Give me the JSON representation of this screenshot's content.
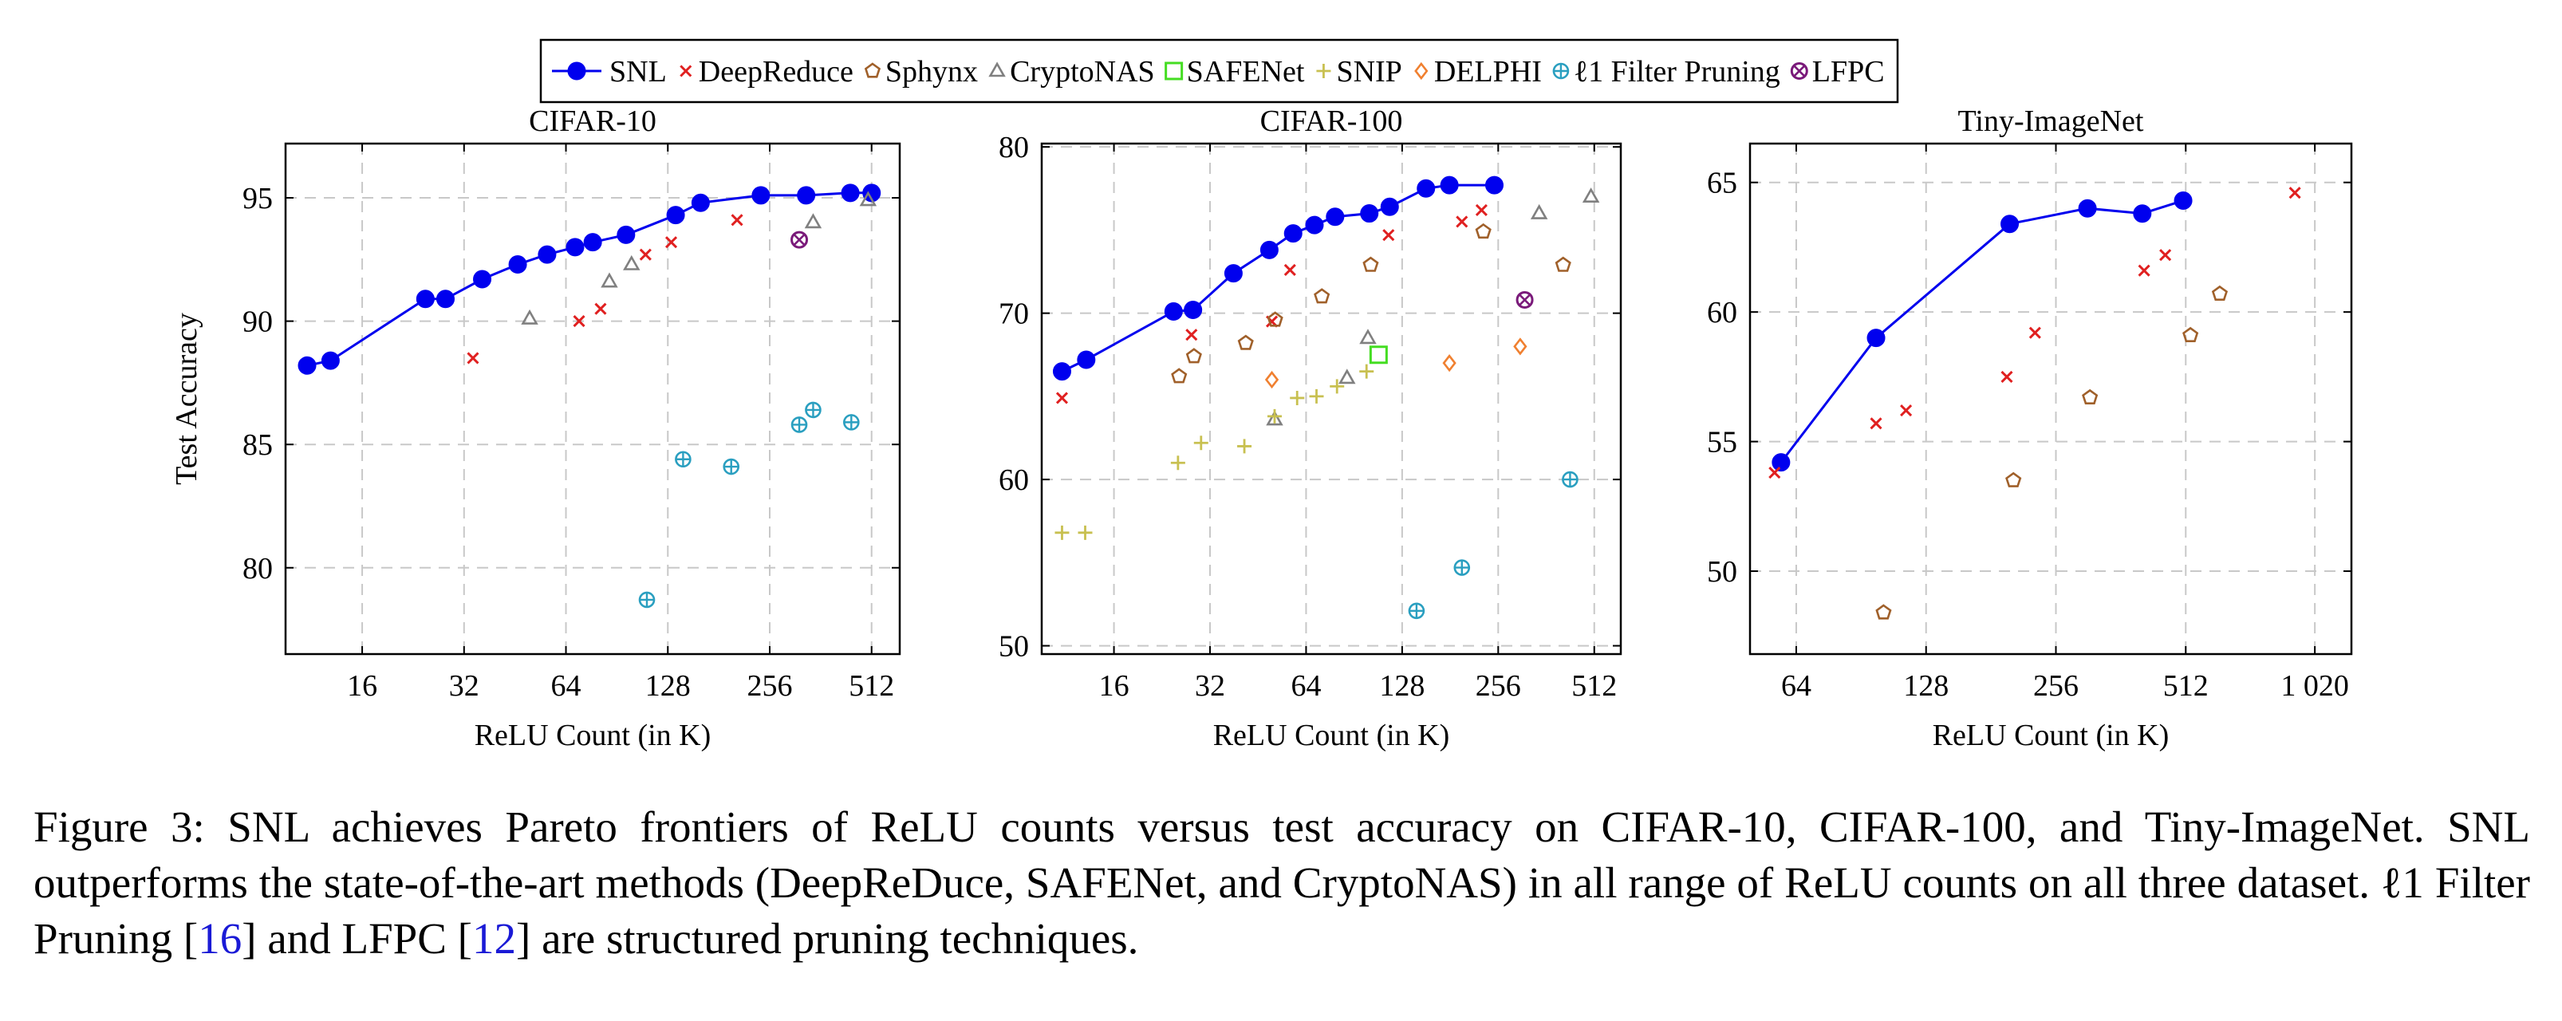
{
  "legend": [
    {
      "name": "SNL",
      "color": "#0000ee",
      "marker": "filled-circle-line"
    },
    {
      "name": "DeepReduce",
      "color": "#e02020",
      "marker": "cross"
    },
    {
      "name": "Sphynx",
      "color": "#a0602a",
      "marker": "pentagon"
    },
    {
      "name": "CryptoNAS",
      "color": "#808080",
      "marker": "triangle"
    },
    {
      "name": "SAFENet",
      "color": "#44dd22",
      "marker": "square"
    },
    {
      "name": "SNIP",
      "color": "#c8c050",
      "marker": "plus"
    },
    {
      "name": "DELPHI",
      "color": "#f08030",
      "marker": "diamond"
    },
    {
      "name": "ℓ1 Filter Pruning",
      "color": "#2a9fc0",
      "marker": "oplus"
    },
    {
      "name": "LFPC",
      "color": "#7a1a7a",
      "marker": "otimes"
    }
  ],
  "chart_data": [
    {
      "type": "scatter",
      "title": "CIFAR-10",
      "xlabel": "ReLU Count (in K)",
      "ylabel": "Test Accuracy",
      "x_scale": "log2",
      "xlim": [
        9.5,
        620
      ],
      "ylim": [
        76.5,
        97.2
      ],
      "xticks": [
        16,
        32,
        64,
        128,
        256,
        512
      ],
      "xtick_labels": [
        "16",
        "32",
        "64",
        "128",
        "256",
        "512"
      ],
      "yticks": [
        80,
        85,
        90,
        95
      ],
      "ytick_labels": [
        "80",
        "85",
        "90",
        "95"
      ],
      "grid": true,
      "series": [
        {
          "name": "SNL",
          "points": [
            [
              11,
              88.2
            ],
            [
              12.9,
              88.4
            ],
            [
              24.6,
              90.9
            ],
            [
              28.2,
              90.9
            ],
            [
              36.2,
              91.7
            ],
            [
              46.1,
              92.3
            ],
            [
              56.3,
              92.7
            ],
            [
              68.1,
              93.0
            ],
            [
              76.8,
              93.2
            ],
            [
              96.3,
              93.5
            ],
            [
              135,
              94.3
            ],
            [
              160,
              94.8
            ],
            [
              241,
              95.1
            ],
            [
              328,
              95.1
            ],
            [
              443,
              95.2
            ],
            [
              512,
              95.2
            ]
          ]
        },
        {
          "name": "DeepReduce",
          "points": [
            [
              34,
              88.5
            ],
            [
              70,
              90.0
            ],
            [
              81,
              90.5
            ],
            [
              110,
              92.7
            ],
            [
              131,
              93.2
            ],
            [
              205,
              94.1
            ]
          ]
        },
        {
          "name": "CryptoNAS",
          "points": [
            [
              50,
              90.1
            ],
            [
              86,
              91.6
            ],
            [
              100,
              92.3
            ],
            [
              344,
              94.0
            ],
            [
              500,
              94.9
            ]
          ]
        },
        {
          "name": "ℓ1 Filter Pruning",
          "points": [
            [
              111,
              78.7
            ],
            [
              142,
              84.4
            ],
            [
              197,
              84.1
            ],
            [
              313,
              85.8
            ],
            [
              344,
              86.4
            ],
            [
              446,
              85.9
            ]
          ]
        },
        {
          "name": "LFPC",
          "points": [
            [
              313,
              93.3
            ]
          ]
        }
      ]
    },
    {
      "type": "scatter",
      "title": "CIFAR-100",
      "xlabel": "ReLU Count (in K)",
      "ylabel": "",
      "x_scale": "log2",
      "xlim": [
        9.5,
        620
      ],
      "ylim": [
        49.5,
        80.2
      ],
      "xticks": [
        16,
        32,
        64,
        128,
        256,
        512
      ],
      "xtick_labels": [
        "16",
        "32",
        "64",
        "128",
        "256",
        "512"
      ],
      "yticks": [
        50,
        60,
        70,
        80
      ],
      "ytick_labels": [
        "50",
        "60",
        "70",
        "80"
      ],
      "grid": true,
      "series": [
        {
          "name": "SNL",
          "points": [
            [
              11,
              66.5
            ],
            [
              13.1,
              67.2
            ],
            [
              24.6,
              70.1
            ],
            [
              28.3,
              70.2
            ],
            [
              37.9,
              72.4
            ],
            [
              49.1,
              73.8
            ],
            [
              58.3,
              74.8
            ],
            [
              68,
              75.3
            ],
            [
              78.9,
              75.8
            ],
            [
              101,
              76.0
            ],
            [
              117,
              76.4
            ],
            [
              152,
              77.5
            ],
            [
              180,
              77.7
            ],
            [
              249,
              77.7
            ]
          ]
        },
        {
          "name": "DeepReduce",
          "points": [
            [
              11,
              64.9
            ],
            [
              28,
              68.7
            ],
            [
              50,
              69.5
            ],
            [
              57,
              72.6
            ],
            [
              116,
              74.7
            ],
            [
              197,
              75.5
            ],
            [
              227,
              76.2
            ]
          ]
        },
        {
          "name": "Sphynx",
          "points": [
            [
              25.6,
              66.2
            ],
            [
              28.5,
              67.4
            ],
            [
              41.4,
              68.2
            ],
            [
              51.2,
              69.6
            ],
            [
              71.7,
              71.0
            ],
            [
              102,
              72.9
            ],
            [
              230,
              74.9
            ],
            [
              409,
              72.9
            ]
          ]
        },
        {
          "name": "CryptoNAS",
          "points": [
            [
              51,
              63.6
            ],
            [
              86,
              66.1
            ],
            [
              100,
              68.5
            ],
            [
              344,
              76.0
            ],
            [
              500,
              77.0
            ]
          ]
        },
        {
          "name": "SAFENet",
          "points": [
            [
              108,
              67.5
            ]
          ]
        },
        {
          "name": "SNIP",
          "points": [
            [
              11,
              56.8
            ],
            [
              13,
              56.8
            ],
            [
              25.4,
              61.0
            ],
            [
              30,
              62.2
            ],
            [
              41,
              62.0
            ],
            [
              51,
              63.8
            ],
            [
              60,
              64.9
            ],
            [
              69,
              65.0
            ],
            [
              80,
              65.6
            ],
            [
              99,
              66.5
            ]
          ]
        },
        {
          "name": "DELPHI",
          "points": [
            [
              50,
              66.0
            ],
            [
              180,
              67.0
            ],
            [
              300,
              68.0
            ]
          ]
        },
        {
          "name": "ℓ1 Filter Pruning",
          "points": [
            [
              142,
              52.1
            ],
            [
              197,
              54.7
            ],
            [
              430,
              60.0
            ]
          ]
        },
        {
          "name": "LFPC",
          "points": [
            [
              310,
              70.8
            ]
          ]
        }
      ]
    },
    {
      "type": "scatter",
      "title": "Tiny-ImageNet",
      "xlabel": "ReLU Count (in K)",
      "ylabel": "",
      "x_scale": "log2",
      "xlim": [
        50,
        1240
      ],
      "ylim": [
        46.8,
        66.5
      ],
      "xticks": [
        64,
        128,
        256,
        512,
        1020
      ],
      "xtick_labels": [
        "64",
        "128",
        "256",
        "512",
        "1 020"
      ],
      "yticks": [
        50,
        55,
        60,
        65
      ],
      "ytick_labels": [
        "50",
        "55",
        "60",
        "65"
      ],
      "grid": true,
      "series": [
        {
          "name": "SNL",
          "points": [
            [
              59,
              54.2
            ],
            [
              98,
              59.0
            ],
            [
              200,
              63.4
            ],
            [
              303,
              64.0
            ],
            [
              406,
              63.8
            ],
            [
              505,
              64.3
            ]
          ]
        },
        {
          "name": "DeepReduce",
          "points": [
            [
              57,
              53.8
            ],
            [
              98,
              55.7
            ],
            [
              115,
              56.2
            ],
            [
              197,
              57.5
            ],
            [
              229,
              59.2
            ],
            [
              410,
              61.6
            ],
            [
              459,
              62.2
            ],
            [
              917,
              64.6
            ]
          ]
        },
        {
          "name": "Sphynx",
          "points": [
            [
              102,
              48.4
            ],
            [
              204,
              53.5
            ],
            [
              307,
              56.7
            ],
            [
              525,
              59.1
            ],
            [
              614,
              60.7
            ]
          ]
        }
      ]
    }
  ],
  "caption": {
    "prefix": "Figure 3: SNL achieves Pareto frontiers of ReLU counts versus test accuracy on CIFAR-10, CIFAR-100, and Tiny-ImageNet. SNL outperforms the state-of-the-art methods (DeepReDuce, SAFENet, and CryptoNAS) in all range of ReLU counts on all three dataset. ℓ1 Filter Pruning [",
    "ref1": "16",
    "middle": "] and LFPC [",
    "ref2": "12",
    "suffix": "] are structured pruning techniques."
  }
}
